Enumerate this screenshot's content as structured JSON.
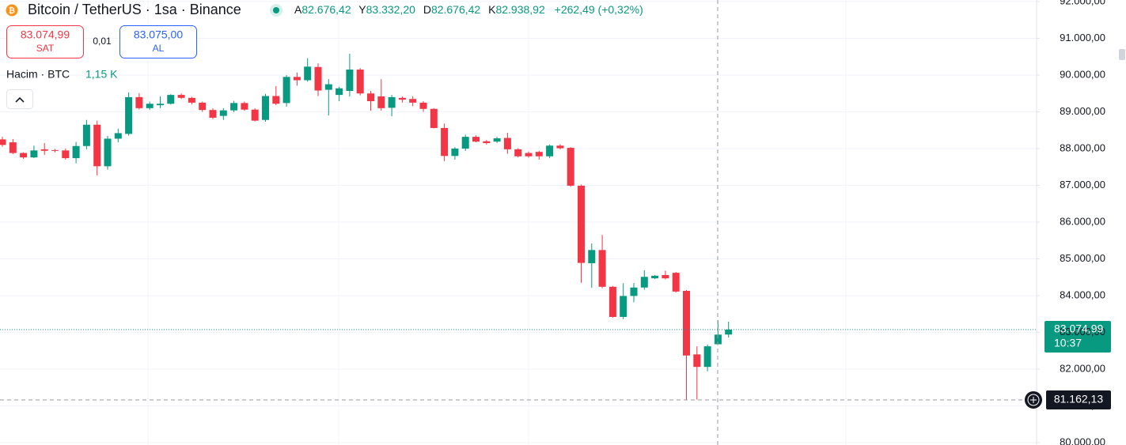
{
  "header": {
    "title": "Bitcoin / TetherUS · 1sa · Binance",
    "ohlc": [
      {
        "label": "A",
        "value": "82.676,42"
      },
      {
        "label": "Y",
        "value": "83.332,20"
      },
      {
        "label": "D",
        "value": "82.676,42"
      },
      {
        "label": "K",
        "value": "82.938,92"
      }
    ],
    "change": "+262,49 (+0,32%)",
    "sell": {
      "price": "83.074,99",
      "label": "SAT"
    },
    "spread": "0,01",
    "buy": {
      "price": "83.075,00",
      "label": "AL"
    },
    "volume_label": "Hacim · BTC",
    "volume_value": "1,15 K"
  },
  "chart_data": {
    "type": "candlestick",
    "up_color": "#089981",
    "down_color": "#f23645",
    "open": [
      88250,
      88170,
      87880,
      87760,
      87980,
      87960,
      87950,
      87740,
      88070,
      88650,
      87520,
      88270,
      88400,
      89400,
      89100,
      89180,
      89220,
      89460,
      89380,
      89250,
      89050,
      88890,
      89040,
      89240,
      89060,
      88780,
      89430,
      89240,
      89950,
      89860,
      90220,
      89600,
      89460,
      89570,
      90150,
      89500,
      89420,
      89110,
      89380,
      89350,
      89250,
      89080,
      88560,
      87800,
      88000,
      88320,
      88200,
      88190,
      88290,
      87980,
      87880,
      87910,
      87790,
      88080,
      88020,
      86990,
      84880,
      85240,
      84240,
      83420,
      83990,
      84220,
      84470,
      84560,
      84620,
      84130,
      82400,
      82060,
      82676.42,
      82940
    ],
    "high": [
      88320,
      88260,
      87900,
      88080,
      88150,
      87990,
      88000,
      88180,
      88780,
      88760,
      88350,
      88540,
      89530,
      89510,
      89280,
      89420,
      89480,
      89500,
      89410,
      89280,
      89100,
      89100,
      89300,
      89280,
      89100,
      89490,
      89700,
      90000,
      90070,
      90460,
      90320,
      89890,
      89680,
      90580,
      90190,
      89570,
      89890,
      89460,
      89420,
      89420,
      89290,
      89100,
      88680,
      88040,
      88380,
      88360,
      88230,
      88320,
      88430,
      88010,
      87920,
      87940,
      88110,
      88120,
      88040,
      87020,
      85420,
      85650,
      84260,
      84340,
      84340,
      84690,
      84560,
      84680,
      84640,
      84150,
      82620,
      82670,
      83332.2,
      83290
    ],
    "low": [
      88050,
      87850,
      87720,
      87740,
      87830,
      87900,
      87700,
      87600,
      87980,
      87270,
      87430,
      88170,
      88350,
      89060,
      89050,
      89100,
      89200,
      89350,
      89200,
      89000,
      88800,
      88780,
      88990,
      89030,
      88740,
      88730,
      89180,
      89140,
      89710,
      89820,
      89430,
      88900,
      89290,
      89420,
      89450,
      89030,
      89030,
      88880,
      89250,
      89150,
      89000,
      88550,
      87660,
      87700,
      87940,
      88170,
      88110,
      88150,
      87860,
      87760,
      87750,
      87700,
      87740,
      87980,
      86960,
      84350,
      84210,
      84200,
      83400,
      83360,
      83820,
      84160,
      84450,
      84440,
      84080,
      81162,
      81170,
      81940,
      82676.42,
      82860
    ],
    "close": [
      88100,
      87880,
      87760,
      87950,
      87940,
      87940,
      87740,
      88070,
      88650,
      87520,
      88270,
      88420,
      89400,
      89100,
      89220,
      89220,
      89460,
      89380,
      89250,
      89050,
      88840,
      89040,
      89240,
      89060,
      88760,
      89430,
      89220,
      89950,
      89860,
      90230,
      89580,
      89750,
      89640,
      90150,
      89500,
      89290,
      89100,
      89400,
      89330,
      89250,
      89080,
      88560,
      87800,
      88000,
      88320,
      88190,
      88150,
      88280,
      87980,
      87790,
      87790,
      87790,
      88080,
      88010,
      86990,
      84890,
      85240,
      84240,
      83420,
      83990,
      84220,
      84510,
      84540,
      84470,
      84110,
      82370,
      82060,
      82620,
      82938.92,
      83074.99
    ],
    "ylim": [
      79935,
      92043
    ],
    "yticks": [
      {
        "value": 80000,
        "label": "80.000,00"
      },
      {
        "value": 81000,
        "label": "81.000,00"
      },
      {
        "value": 82000,
        "label": "82.000,00"
      },
      {
        "value": 83000,
        "label": "83.000,00"
      },
      {
        "value": 84000,
        "label": "84.000,00"
      },
      {
        "value": 85000,
        "label": "85.000,00"
      },
      {
        "value": 86000,
        "label": "86.000,00"
      },
      {
        "value": 87000,
        "label": "87.000,00"
      },
      {
        "value": 88000,
        "label": "88.000,00"
      },
      {
        "value": 89000,
        "label": "89.000,00"
      },
      {
        "value": 90000,
        "label": "90.000,00"
      },
      {
        "value": 91000,
        "label": "91.000,00"
      },
      {
        "value": 92000,
        "label": "92.000,00"
      }
    ],
    "grid": true,
    "last_price": {
      "value": 83074.99,
      "label": "83.074,99"
    },
    "countdown": "10:37",
    "crosshair_price": {
      "value": 81162.13,
      "label": "81.162,13"
    }
  }
}
